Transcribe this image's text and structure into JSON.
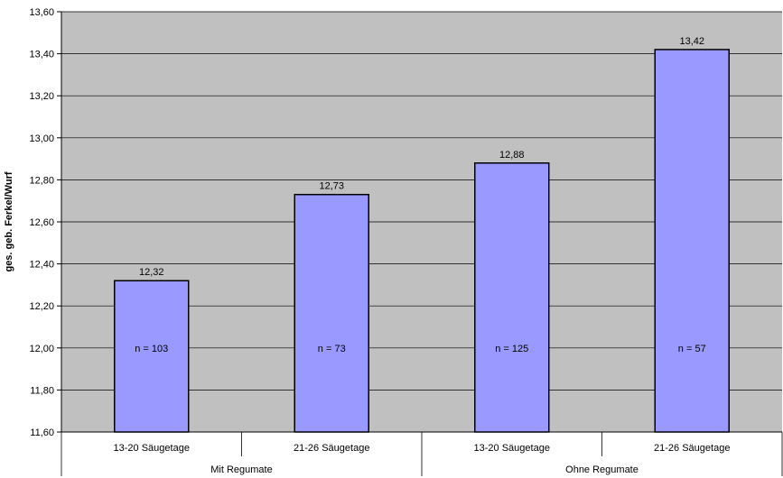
{
  "chart_data": {
    "type": "bar",
    "ylabel": "ges. geb. Ferkel/Wurf",
    "ylim": [
      11.6,
      13.6
    ],
    "yticks": [
      "11,60",
      "11,80",
      "12,00",
      "12,20",
      "12,40",
      "12,60",
      "12,80",
      "13,00",
      "13,20",
      "13,40",
      "13,60"
    ],
    "categories": [
      "13-20 Säugetage",
      "21-26 Säugetage",
      "13-20 Säugetage",
      "21-26 Säugetage"
    ],
    "groups": [
      {
        "label": "Mit Regumate"
      },
      {
        "label": "Ohne Regumate"
      }
    ],
    "values": [
      12.32,
      12.73,
      12.88,
      13.42
    ],
    "value_labels": [
      "12,32",
      "12,73",
      "12,88",
      "13,42"
    ],
    "n_labels": [
      "n = 103",
      "n = 73",
      "n = 125",
      "n = 57"
    ],
    "n_label_value": 12.0,
    "grid": true,
    "colors": {
      "bar": "#9999ff",
      "bar_border": "#000000",
      "plot_bg": "#c0c0c0",
      "gridline": "#000000"
    }
  }
}
